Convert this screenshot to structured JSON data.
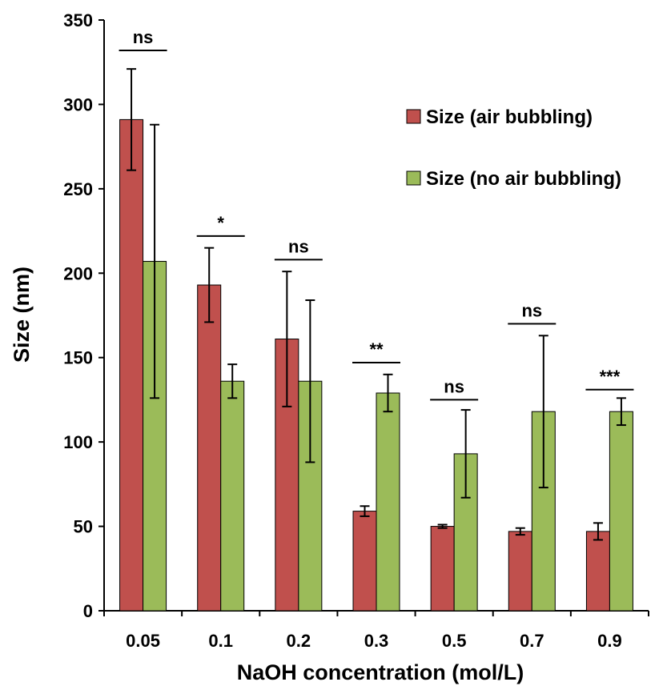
{
  "chart_data": {
    "type": "bar",
    "title": "",
    "xlabel": "NaOH concentration (mol/L)",
    "ylabel": "Size (nm)",
    "ylim": [
      0,
      350
    ],
    "yticks": [
      0,
      50,
      100,
      150,
      200,
      250,
      300,
      350
    ],
    "categories": [
      "0.05",
      "0.1",
      "0.2",
      "0.3",
      "0.5",
      "0.7",
      "0.9"
    ],
    "series": [
      {
        "name": "Size (air bubbling)",
        "color": "#c0504d",
        "values": [
          291,
          193,
          161,
          59,
          50,
          47,
          47
        ],
        "errors": [
          30,
          22,
          40,
          3,
          1,
          2,
          5
        ]
      },
      {
        "name": "Size (no air bubbling)",
        "color": "#9bbb59",
        "values": [
          207,
          136,
          136,
          129,
          93,
          118,
          118
        ],
        "errors": [
          81,
          10,
          48,
          11,
          26,
          45,
          8
        ]
      }
    ],
    "significance": [
      {
        "label": "ns",
        "line_y": 332
      },
      {
        "label": "*",
        "line_y": 222
      },
      {
        "label": "ns",
        "line_y": 208
      },
      {
        "label": "**",
        "line_y": 147
      },
      {
        "label": "ns",
        "line_y": 125
      },
      {
        "label": "ns",
        "line_y": 170
      },
      {
        "label": "***",
        "line_y": 131
      }
    ],
    "legend_position": "top-right",
    "grid": false
  }
}
